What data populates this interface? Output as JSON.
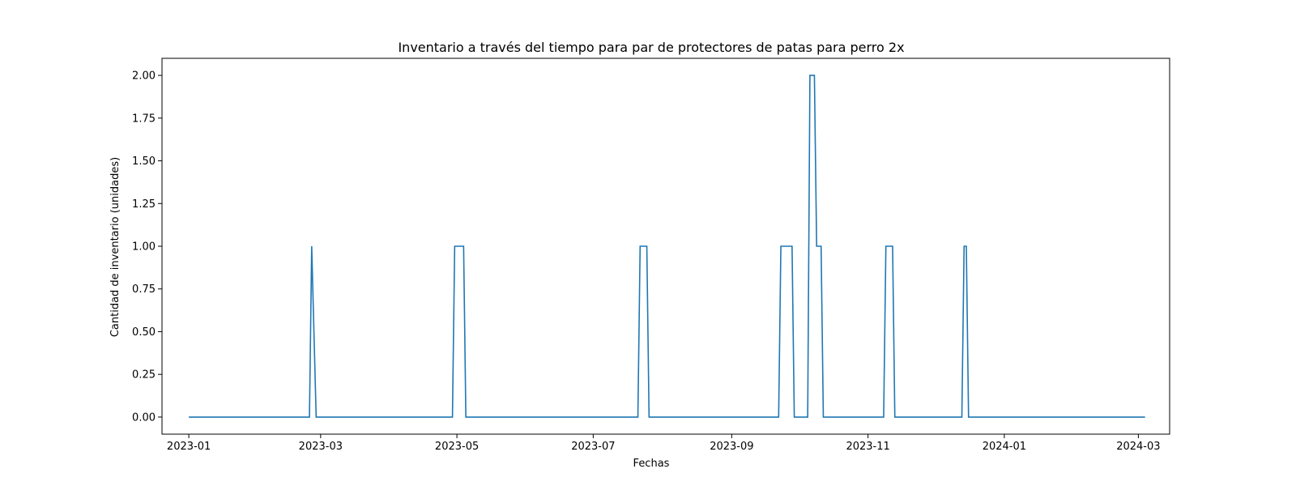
{
  "chart_data": {
    "type": "line",
    "title": "Inventario a través del tiempo para par de protectores de patas para perro 2x",
    "xlabel": "Fechas",
    "ylabel": "Cantidad de inventario (unidades)",
    "xlim": [
      "2022-12-20",
      "2024-03-15"
    ],
    "ylim": [
      -0.1,
      2.1
    ],
    "grid": false,
    "x_ticks": [
      "2023-01",
      "2023-03",
      "2023-05",
      "2023-07",
      "2023-09",
      "2023-11",
      "2024-01",
      "2024-03"
    ],
    "y_ticks": [
      "0.00",
      "0.25",
      "0.50",
      "0.75",
      "1.00",
      "1.25",
      "1.50",
      "1.75",
      "2.00"
    ],
    "series": [
      {
        "color": "#1f77b4",
        "points": [
          [
            "2023-01-01",
            0
          ],
          [
            "2023-02-24",
            0
          ],
          [
            "2023-02-25",
            1
          ],
          [
            "2023-02-27",
            0
          ],
          [
            "2023-04-29",
            0
          ],
          [
            "2023-04-30",
            1
          ],
          [
            "2023-05-04",
            1
          ],
          [
            "2023-05-05",
            0
          ],
          [
            "2023-07-21",
            0
          ],
          [
            "2023-07-22",
            1
          ],
          [
            "2023-07-25",
            1
          ],
          [
            "2023-07-26",
            0
          ],
          [
            "2023-09-22",
            0
          ],
          [
            "2023-09-23",
            1
          ],
          [
            "2023-09-28",
            1
          ],
          [
            "2023-09-29",
            0
          ],
          [
            "2023-10-05",
            0
          ],
          [
            "2023-10-06",
            2
          ],
          [
            "2023-10-08",
            2
          ],
          [
            "2023-10-09",
            1
          ],
          [
            "2023-10-11",
            1
          ],
          [
            "2023-10-12",
            0
          ],
          [
            "2023-11-08",
            0
          ],
          [
            "2023-11-09",
            1
          ],
          [
            "2023-11-12",
            1
          ],
          [
            "2023-11-13",
            0
          ],
          [
            "2023-12-13",
            0
          ],
          [
            "2023-12-14",
            1
          ],
          [
            "2023-12-15",
            1
          ],
          [
            "2023-12-16",
            0
          ],
          [
            "2024-03-04",
            0
          ]
        ]
      }
    ]
  }
}
